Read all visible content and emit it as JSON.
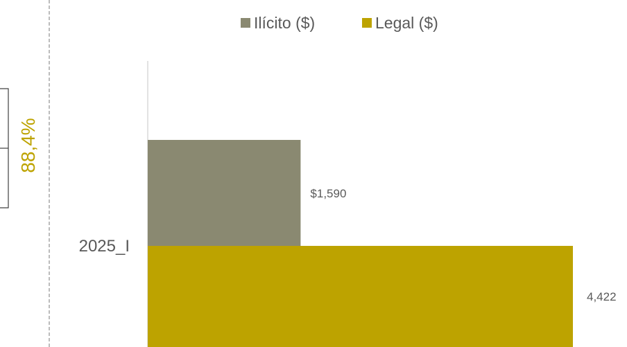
{
  "chart_data": {
    "type": "bar",
    "orientation": "horizontal",
    "categories": [
      "2025_I"
    ],
    "series": [
      {
        "name": "Ilícito ($)",
        "values": [
          1590
        ],
        "value_label": "$1,590",
        "color": "#8A8971"
      },
      {
        "name": "Legal ($)",
        "values": [
          4422
        ],
        "value_label": "4,422",
        "color": "#BDA300"
      }
    ],
    "legend_position": "top",
    "xlim": [
      0,
      4422
    ],
    "grid": false,
    "annotation": {
      "text": "88,4%",
      "color": "#BDA300"
    }
  }
}
